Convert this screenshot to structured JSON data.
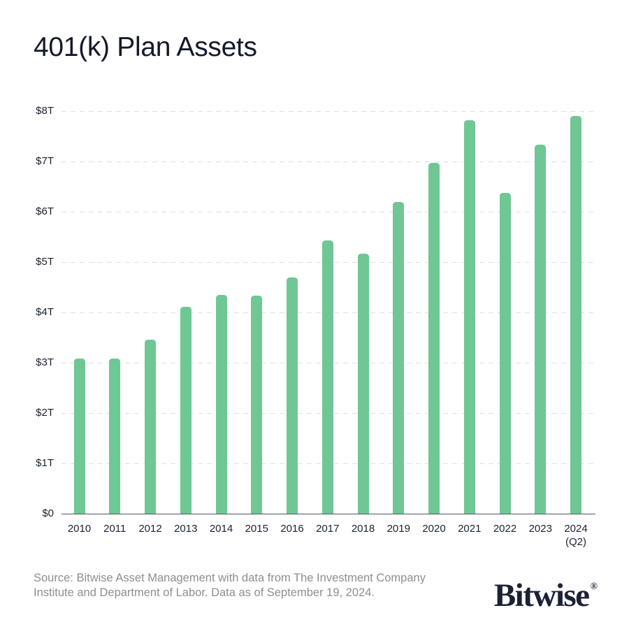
{
  "header": {
    "title": "401(k) Plan Assets"
  },
  "chart_data": {
    "type": "bar",
    "title": "401(k) Plan Assets",
    "categories": [
      "2010",
      "2011",
      "2012",
      "2013",
      "2014",
      "2015",
      "2016",
      "2017",
      "2018",
      "2019",
      "2020",
      "2021",
      "2022",
      "2023",
      "2024"
    ],
    "x_last_note": "(Q2)",
    "values": [
      3.08,
      3.08,
      3.46,
      4.11,
      4.35,
      4.33,
      4.7,
      5.43,
      5.16,
      6.2,
      6.97,
      7.82,
      6.37,
      7.34,
      7.9
    ],
    "unit": "trillions of USD",
    "xlabel": "",
    "ylabel": "",
    "y_ticks": [
      "$0",
      "$1T",
      "$2T",
      "$3T",
      "$4T",
      "$5T",
      "$6T",
      "$7T",
      "$8T"
    ],
    "ylim": [
      0,
      8
    ],
    "grid": "horizontal-dashed",
    "legend": "none",
    "bar_color": "#6FC794"
  },
  "footer": {
    "source_lines": [
      "Source: Bitwise Asset Management with data from The Investment Company",
      "Institute and Department of Labor. Data as of September 19, 2024."
    ],
    "logo_text": "Bitwise",
    "logo_mark": "®"
  },
  "colors": {
    "bar": "#6FC794",
    "title": "#141A2B",
    "axis_labels": "#1A2130",
    "gridline": "#E0E0E1",
    "axis_line": "#54555A",
    "source_text": "#8D8E90",
    "logo": "#1C2235",
    "background": "#FFFFFF"
  }
}
